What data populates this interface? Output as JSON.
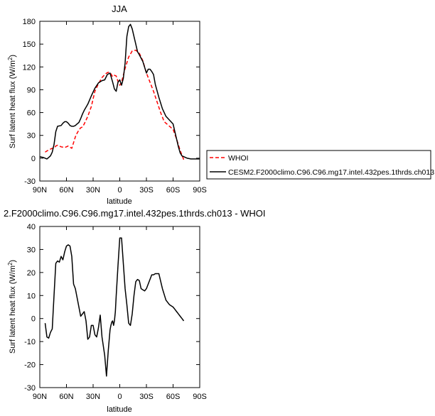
{
  "chart_data": [
    {
      "type": "line",
      "title": "JJA",
      "xlabel": "latitude",
      "ylabel": "Surf latent heat flux (W/m",
      "ylabel_sup": "2",
      "ylabel_close": ")",
      "xlim": [
        -90,
        90
      ],
      "ylim": [
        -30,
        180
      ],
      "xticks": [
        -90,
        -60,
        -30,
        0,
        30,
        60,
        90
      ],
      "xticklabels": [
        "90N",
        "60N",
        "30N",
        "0",
        "30S",
        "60S",
        "90S"
      ],
      "yticks": [
        -30,
        0,
        30,
        60,
        90,
        120,
        150,
        180
      ],
      "yticklabels": [
        "-30",
        "0",
        "30",
        "60",
        "90",
        "120",
        "150",
        "180"
      ],
      "grid": false,
      "legend": "right",
      "series": [
        {
          "name": "WHOI",
          "color": "#ff0000",
          "dash": true,
          "x": [
            -84,
            -80,
            -76,
            -74,
            -72,
            -70,
            -66,
            -62,
            -58,
            -54,
            -50,
            -48,
            -46,
            -44,
            -42,
            -40,
            -36,
            -32,
            -28,
            -24,
            -20,
            -16,
            -13,
            -10,
            -8,
            -6,
            -4,
            -2,
            0,
            2,
            6,
            10,
            14,
            18,
            22,
            26,
            30,
            34,
            38,
            42,
            46,
            50,
            54,
            56,
            60,
            64,
            68,
            72
          ],
          "y": [
            8,
            11,
            13,
            13,
            16,
            17,
            15,
            14,
            16,
            13,
            28,
            33,
            37,
            40,
            41,
            45,
            55,
            68,
            88,
            98,
            106,
            111,
            113,
            111,
            107,
            109,
            108,
            101,
            96,
            100,
            118,
            133,
            141,
            142,
            138,
            128,
            112,
            100,
            88,
            74,
            60,
            48,
            44,
            42,
            38,
            25,
            10,
            -2
          ]
        },
        {
          "name": "CESM2.F2000climo.C96.C96.mg17.intel.432pes.1thrds.ch013",
          "color": "#000000",
          "dash": false,
          "x": [
            -90,
            -86,
            -82,
            -80,
            -78,
            -76,
            -74,
            -72,
            -70,
            -66,
            -64,
            -62,
            -60,
            -58,
            -56,
            -54,
            -52,
            -50,
            -48,
            -46,
            -44,
            -42,
            -40,
            -36,
            -32,
            -28,
            -24,
            -20,
            -17,
            -14,
            -11,
            -8,
            -6,
            -4,
            -2,
            0,
            2,
            4,
            6,
            8,
            10,
            12,
            14,
            16,
            18,
            20,
            22,
            26,
            30,
            32,
            34,
            36,
            38,
            40,
            44,
            48,
            52,
            56,
            60,
            62,
            64,
            66,
            68,
            70,
            72,
            74,
            76,
            80,
            84,
            88,
            90
          ],
          "y": [
            2,
            1,
            -1,
            1,
            3,
            8,
            18,
            35,
            42,
            43,
            46,
            48,
            48,
            46,
            43,
            42,
            42,
            43,
            45,
            47,
            52,
            58,
            63,
            71,
            82,
            92,
            99,
            102,
            103,
            110,
            112,
            100,
            91,
            88,
            100,
            103,
            96,
            105,
            125,
            160,
            173,
            176,
            170,
            160,
            150,
            140,
            136,
            127,
            112,
            117,
            117,
            114,
            110,
            97,
            80,
            65,
            55,
            50,
            45,
            35,
            25,
            15,
            7,
            3,
            2,
            1,
            0,
            -1,
            -1,
            -1,
            -1
          ]
        }
      ]
    },
    {
      "type": "line",
      "title": "2.F2000climo.C96.C96.mg17.intel.432pes.1thrds.ch013 - WHOI",
      "xlabel": "latitude",
      "ylabel": "Surf latent heat flux (W/m",
      "ylabel_sup": "2",
      "ylabel_close": ")",
      "xlim": [
        -90,
        90
      ],
      "ylim": [
        -30,
        40
      ],
      "xticks": [
        -90,
        -60,
        -30,
        0,
        30,
        60,
        90
      ],
      "xticklabels": [
        "90N",
        "60N",
        "30N",
        "0",
        "30S",
        "60S",
        "90S"
      ],
      "yticks": [
        -30,
        -20,
        -10,
        0,
        10,
        20,
        30,
        40
      ],
      "yticklabels": [
        "-30",
        "-20",
        "-10",
        "0",
        "10",
        "20",
        "30",
        "40"
      ],
      "grid": false,
      "series": [
        {
          "color": "#000000",
          "x": [
            -84,
            -82,
            -80,
            -78,
            -76,
            -74,
            -72,
            -70,
            -68,
            -66,
            -64,
            -62,
            -60,
            -58,
            -56,
            -54,
            -52,
            -50,
            -48,
            -46,
            -44,
            -40,
            -38,
            -36,
            -34,
            -32,
            -30,
            -28,
            -26,
            -24,
            -22,
            -20,
            -17,
            -15,
            -13,
            -11,
            -10,
            -9,
            -8,
            -7,
            -6,
            -5,
            -4,
            -2,
            0,
            2,
            4,
            6,
            8,
            10,
            12,
            14,
            16,
            18,
            20,
            22,
            24,
            26,
            28,
            30,
            32,
            34,
            36,
            38,
            40,
            44,
            48,
            52,
            56,
            58,
            60,
            62,
            64,
            66,
            68,
            70,
            72
          ],
          "y": [
            -2,
            -8,
            -8.5,
            -6,
            -4.5,
            10,
            24,
            25,
            24.5,
            27,
            25.5,
            29,
            31.5,
            32,
            31.5,
            27,
            15,
            13,
            9,
            5,
            1,
            3,
            -1,
            -9,
            -8,
            -3,
            -3,
            -7,
            -8,
            -4,
            1.5,
            -8,
            -16,
            -25,
            -14,
            -5,
            -3,
            -1.5,
            -1,
            -3,
            -1,
            3,
            10,
            23,
            35,
            35,
            24,
            13,
            6,
            -2,
            -3,
            2,
            10,
            16,
            17,
            16.5,
            13,
            12.5,
            12,
            13,
            15,
            17,
            19,
            19,
            19.5,
            19.5,
            13,
            8,
            6,
            5.5,
            5,
            4,
            3,
            2,
            1,
            0,
            -1
          ]
        }
      ]
    }
  ]
}
